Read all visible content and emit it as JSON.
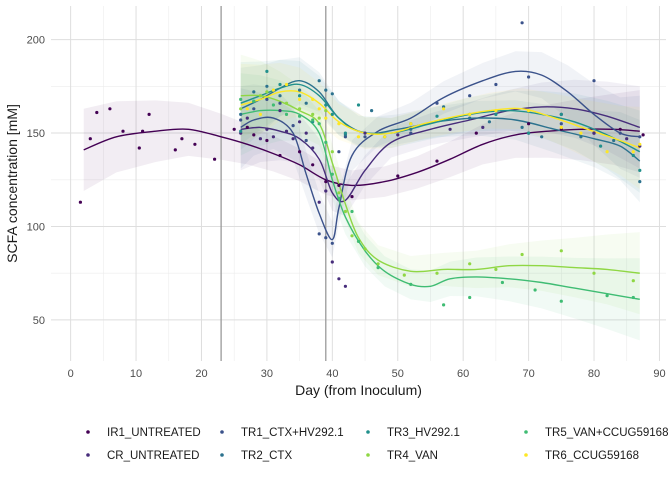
{
  "chart_data": {
    "type": "scatter",
    "xlabel": "Day (from Inoculum)",
    "ylabel": "SCFA concentration [mM]",
    "xlim": [
      -3,
      91
    ],
    "ylim": [
      28,
      218
    ],
    "x_ticks": [
      0,
      10,
      20,
      30,
      40,
      50,
      60,
      70,
      80,
      90
    ],
    "y_ticks": [
      50,
      100,
      150,
      200
    ],
    "vlines": [
      23,
      39
    ],
    "grid": true,
    "legend_position": "bottom",
    "series": [
      {
        "name": "IR1_UNTREATED",
        "color": "#440154",
        "points": [
          [
            1.5,
            113
          ],
          [
            3,
            147
          ],
          [
            4,
            161
          ],
          [
            6,
            163
          ],
          [
            8,
            151
          ],
          [
            10.5,
            142
          ],
          [
            11,
            151
          ],
          [
            12,
            160
          ],
          [
            16,
            141
          ],
          [
            17,
            147
          ],
          [
            19,
            144
          ],
          [
            22,
            136
          ],
          [
            25,
            152
          ],
          [
            27,
            153
          ],
          [
            28,
            149
          ],
          [
            30,
            146
          ],
          [
            32,
            138
          ],
          [
            35,
            140
          ],
          [
            37,
            133
          ],
          [
            39,
            124
          ],
          [
            41,
            122
          ],
          [
            43,
            116
          ],
          [
            50,
            127
          ],
          [
            56,
            135
          ],
          [
            62,
            150
          ],
          [
            70,
            155
          ],
          [
            75,
            152
          ],
          [
            80,
            150
          ],
          [
            84,
            152
          ],
          [
            87.5,
            149
          ]
        ],
        "smooth": [
          [
            2,
            141
          ],
          [
            7,
            148
          ],
          [
            13,
            151
          ],
          [
            18,
            152
          ],
          [
            23,
            148
          ],
          [
            27,
            144
          ],
          [
            31,
            139
          ],
          [
            35,
            133
          ],
          [
            39,
            125
          ],
          [
            43,
            122
          ],
          [
            48,
            124
          ],
          [
            53,
            129
          ],
          [
            58,
            136
          ],
          [
            63,
            144
          ],
          [
            68,
            149
          ],
          [
            73,
            151
          ],
          [
            78,
            152
          ],
          [
            83,
            152
          ],
          [
            87,
            151
          ]
        ]
      },
      {
        "name": "CR_UNTREATED",
        "color": "#472D7B",
        "points": [
          [
            26,
            150
          ],
          [
            27,
            158
          ],
          [
            29,
            147
          ],
          [
            30,
            152
          ],
          [
            31,
            148
          ],
          [
            32,
            162
          ],
          [
            33,
            151
          ],
          [
            34,
            147
          ],
          [
            35,
            156
          ],
          [
            36,
            150
          ],
          [
            37,
            142
          ],
          [
            38,
            113
          ],
          [
            39,
            119
          ],
          [
            40,
            81
          ],
          [
            41,
            72
          ],
          [
            42,
            68
          ],
          [
            45,
            150
          ],
          [
            50,
            149
          ],
          [
            58,
            152
          ],
          [
            63,
            153
          ],
          [
            70,
            150
          ],
          [
            75,
            160
          ],
          [
            80,
            150
          ],
          [
            85,
            147
          ],
          [
            87,
            143
          ]
        ],
        "smooth": [
          [
            26,
            152
          ],
          [
            29,
            153
          ],
          [
            32,
            151
          ],
          [
            35,
            147
          ],
          [
            38,
            136
          ],
          [
            40,
            118
          ],
          [
            42,
            114
          ],
          [
            45,
            130
          ],
          [
            49,
            145
          ],
          [
            55,
            152
          ],
          [
            61,
            157
          ],
          [
            67,
            162
          ],
          [
            72,
            164
          ],
          [
            77,
            163
          ],
          [
            82,
            159
          ],
          [
            87,
            153
          ]
        ]
      },
      {
        "name": "TR1_CTX+HV292.1",
        "color": "#3B528B",
        "points": [
          [
            26,
            157
          ],
          [
            28,
            163
          ],
          [
            30,
            168
          ],
          [
            32,
            166
          ],
          [
            34,
            154
          ],
          [
            36,
            146
          ],
          [
            38,
            96
          ],
          [
            39,
            94
          ],
          [
            40,
            91
          ],
          [
            41,
            140
          ],
          [
            42,
            148
          ],
          [
            45,
            148
          ],
          [
            52,
            150
          ],
          [
            56,
            166
          ],
          [
            61,
            170
          ],
          [
            65,
            176
          ],
          [
            69,
            209
          ],
          [
            70,
            180
          ],
          [
            75,
            155
          ],
          [
            80,
            178
          ],
          [
            84,
            150
          ],
          [
            87,
            148
          ]
        ],
        "smooth": [
          [
            26,
            153
          ],
          [
            28,
            157
          ],
          [
            31,
            158
          ],
          [
            34,
            150
          ],
          [
            36,
            128
          ],
          [
            38,
            107
          ],
          [
            40,
            93
          ],
          [
            41,
            110
          ],
          [
            43,
            138
          ],
          [
            47,
            151
          ],
          [
            52,
            158
          ],
          [
            57,
            169
          ],
          [
            63,
            178
          ],
          [
            68,
            183
          ],
          [
            72,
            181
          ],
          [
            76,
            172
          ],
          [
            80,
            160
          ],
          [
            84,
            150
          ],
          [
            87,
            148
          ]
        ]
      },
      {
        "name": "TR2_CTX",
        "color": "#2C728E",
        "points": [
          [
            26,
            160
          ],
          [
            28,
            172
          ],
          [
            30,
            175
          ],
          [
            32,
            170
          ],
          [
            35,
            173
          ],
          [
            36,
            166
          ],
          [
            38,
            178
          ],
          [
            39,
            173
          ],
          [
            40,
            171
          ],
          [
            42,
            149
          ],
          [
            46,
            162
          ],
          [
            52,
            152
          ],
          [
            57,
            164
          ],
          [
            61,
            158
          ],
          [
            64,
            156
          ],
          [
            69,
            153
          ],
          [
            72,
            148
          ],
          [
            78,
            148
          ],
          [
            83,
            146
          ],
          [
            87,
            124
          ]
        ],
        "smooth": [
          [
            26,
            163
          ],
          [
            29,
            168
          ],
          [
            32,
            174
          ],
          [
            35,
            178
          ],
          [
            38,
            172
          ],
          [
            41,
            158
          ],
          [
            45,
            150
          ],
          [
            50,
            152
          ],
          [
            56,
            156
          ],
          [
            62,
            158
          ],
          [
            68,
            157
          ],
          [
            74,
            152
          ],
          [
            80,
            147
          ],
          [
            84,
            143
          ],
          [
            87,
            135
          ]
        ]
      },
      {
        "name": "TR3_HV292.1",
        "color": "#21908C",
        "points": [
          [
            26,
            151
          ],
          [
            28,
            167
          ],
          [
            30,
            183
          ],
          [
            32,
            176
          ],
          [
            35,
            170
          ],
          [
            37,
            156
          ],
          [
            39,
            165
          ],
          [
            40,
            160
          ],
          [
            42,
            150
          ],
          [
            44,
            165
          ],
          [
            48,
            148
          ],
          [
            52,
            155
          ],
          [
            56,
            159
          ],
          [
            61,
            160
          ],
          [
            65,
            160
          ],
          [
            70,
            150
          ],
          [
            75,
            160
          ],
          [
            81,
            143
          ],
          [
            86,
            138
          ],
          [
            87,
            130
          ]
        ],
        "smooth": [
          [
            26,
            166
          ],
          [
            29,
            170
          ],
          [
            32,
            174
          ],
          [
            35,
            176
          ],
          [
            38,
            170
          ],
          [
            41,
            158
          ],
          [
            44,
            151
          ],
          [
            49,
            150
          ],
          [
            55,
            155
          ],
          [
            61,
            160
          ],
          [
            67,
            162
          ],
          [
            72,
            160
          ],
          [
            77,
            156
          ],
          [
            82,
            149
          ],
          [
            87,
            140
          ]
        ]
      },
      {
        "name": "TR4_VAN",
        "color": "#8FD744",
        "points": [
          [
            26,
            163
          ],
          [
            29,
            170
          ],
          [
            30,
            172
          ],
          [
            33,
            166
          ],
          [
            35,
            163
          ],
          [
            37,
            160
          ],
          [
            38,
            158
          ],
          [
            39,
            162
          ],
          [
            40,
            140
          ],
          [
            41,
            118
          ],
          [
            42,
            108
          ],
          [
            43,
            95
          ],
          [
            45,
            88
          ],
          [
            47,
            80
          ],
          [
            51,
            74
          ],
          [
            56,
            75
          ],
          [
            61,
            80
          ],
          [
            65,
            77
          ],
          [
            69,
            85
          ],
          [
            75,
            87
          ],
          [
            80,
            75
          ],
          [
            86,
            71
          ]
        ],
        "smooth": [
          [
            26,
            170
          ],
          [
            29,
            170
          ],
          [
            32,
            167
          ],
          [
            35,
            162
          ],
          [
            38,
            155
          ],
          [
            40,
            134
          ],
          [
            42,
            112
          ],
          [
            44,
            94
          ],
          [
            47,
            82
          ],
          [
            52,
            76
          ],
          [
            57,
            77
          ],
          [
            62,
            77
          ],
          [
            67,
            79
          ],
          [
            72,
            79
          ],
          [
            77,
            78
          ],
          [
            82,
            77
          ],
          [
            87,
            75
          ]
        ]
      },
      {
        "name": "TR5_VAN+CCUG59168",
        "color": "#3FBC73",
        "points": [
          [
            26,
            168
          ],
          [
            28,
            167
          ],
          [
            31,
            165
          ],
          [
            33,
            160
          ],
          [
            35,
            159
          ],
          [
            37,
            157
          ],
          [
            38,
            155
          ],
          [
            39,
            145
          ],
          [
            40,
            128
          ],
          [
            41,
            115
          ],
          [
            43,
            108
          ],
          [
            44,
            92
          ],
          [
            47,
            78
          ],
          [
            52,
            69
          ],
          [
            57,
            58
          ],
          [
            61,
            62
          ],
          [
            66,
            70
          ],
          [
            71,
            66
          ],
          [
            75,
            60
          ],
          [
            82,
            63
          ],
          [
            86,
            62
          ]
        ],
        "smooth": [
          [
            26,
            160
          ],
          [
            29,
            162
          ],
          [
            32,
            162
          ],
          [
            35,
            160
          ],
          [
            38,
            150
          ],
          [
            40,
            125
          ],
          [
            42,
            105
          ],
          [
            45,
            87
          ],
          [
            48,
            76
          ],
          [
            52,
            69
          ],
          [
            55,
            68
          ],
          [
            58,
            72
          ],
          [
            62,
            73
          ],
          [
            67,
            72
          ],
          [
            72,
            70
          ],
          [
            77,
            67
          ],
          [
            82,
            64
          ],
          [
            87,
            61
          ]
        ]
      },
      {
        "name": "TR6_CCUG59168",
        "color": "#FDE725",
        "points": [
          [
            27,
            163
          ],
          [
            29,
            160
          ],
          [
            31,
            173
          ],
          [
            33,
            176
          ],
          [
            35,
            168
          ],
          [
            37,
            168
          ],
          [
            38,
            163
          ],
          [
            39,
            158
          ],
          [
            41,
            155
          ],
          [
            44,
            148
          ],
          [
            48,
            148
          ],
          [
            52,
            155
          ],
          [
            57,
            163
          ],
          [
            61,
            160
          ],
          [
            65,
            162
          ],
          [
            70,
            162
          ],
          [
            75,
            153
          ],
          [
            78,
            150
          ],
          [
            82,
            140
          ],
          [
            86,
            140
          ],
          [
            87,
            144
          ]
        ],
        "smooth": [
          [
            26,
            165
          ],
          [
            29,
            168
          ],
          [
            32,
            172
          ],
          [
            35,
            172
          ],
          [
            38,
            166
          ],
          [
            41,
            156
          ],
          [
            45,
            150
          ],
          [
            49,
            150
          ],
          [
            54,
            155
          ],
          [
            59,
            159
          ],
          [
            64,
            162
          ],
          [
            69,
            163
          ],
          [
            74,
            158
          ],
          [
            79,
            152
          ],
          [
            84,
            146
          ],
          [
            87,
            142
          ]
        ]
      }
    ]
  }
}
